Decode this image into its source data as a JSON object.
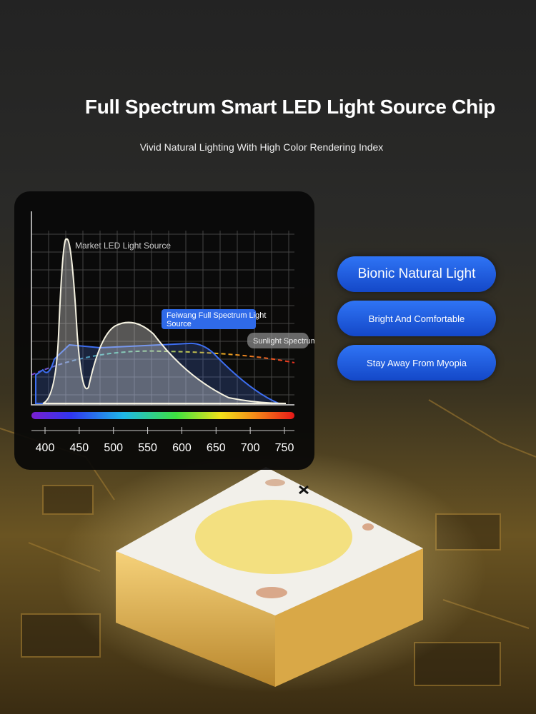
{
  "header": {
    "title": "Full Spectrum Smart LED Light Source Chip",
    "subtitle": "Vivid Natural Lighting With High Color Rendering Index"
  },
  "spectrum": {
    "labels": [
      "Market LED Light Source",
      "Feiwang Full Spectrum Light Source",
      "Sunlight Spectrum"
    ],
    "axis_ticks": [
      400,
      450,
      500,
      550,
      600,
      650,
      700,
      750
    ]
  },
  "features": [
    "Bionic Natural Light",
    "Bright And Comfortable",
    "Stay Away From Myopia"
  ]
}
